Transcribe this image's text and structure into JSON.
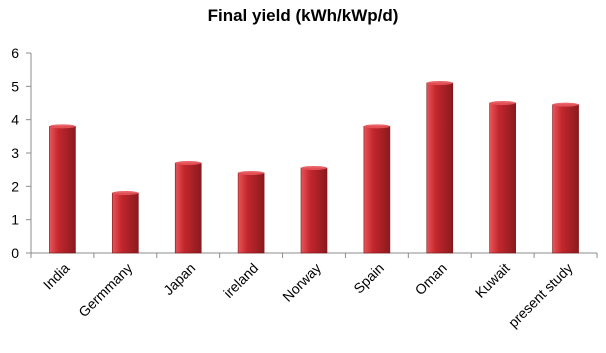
{
  "chart_data": {
    "type": "bar",
    "title": "Final yield (kWh/kWp/d)",
    "xlabel": "",
    "ylabel": "",
    "categories": [
      "India",
      "Germmany",
      "Japan",
      "ireland",
      "Norway",
      "Spain",
      "Oman",
      "Kuwait",
      "present study"
    ],
    "values": [
      3.8,
      1.8,
      2.7,
      2.4,
      2.55,
      3.8,
      5.1,
      4.5,
      4.45
    ],
    "ylim": [
      0,
      6
    ],
    "yticks": [
      "0",
      "1",
      "2",
      "3",
      "4",
      "5",
      "6"
    ],
    "grid": false,
    "legend": "none",
    "colors": {
      "bar_light": "#e8555a",
      "bar_mid": "#c2272d",
      "bar_dark": "#8a1a1e",
      "axis": "#8c8c8c",
      "text": "#000000"
    }
  }
}
